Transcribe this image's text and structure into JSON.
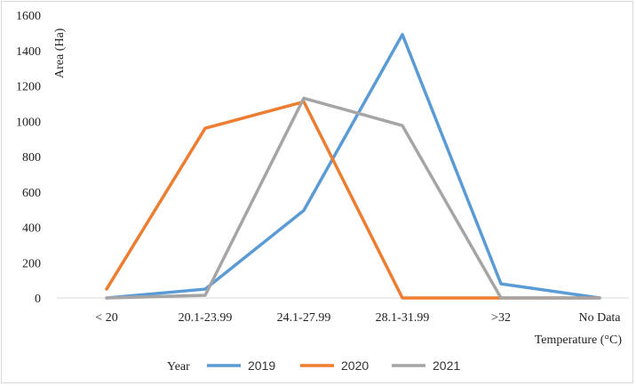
{
  "chart_data": {
    "type": "line",
    "title": "",
    "xlabel": "Temperature (°C)",
    "ylabel": "Area (Ha)",
    "categories": [
      "< 20",
      "20.1-23.99",
      "24.1-27.99",
      "28.1-31.99",
      ">32",
      "No Data"
    ],
    "ylim": [
      0,
      1600
    ],
    "yticks": [
      0,
      200,
      400,
      600,
      800,
      1000,
      1200,
      1400,
      1600
    ],
    "grid": false,
    "legend": {
      "title": "Year",
      "placement": "bottom"
    },
    "series": [
      {
        "name": "2019",
        "color": "#5b9bd5",
        "values": [
          0,
          50,
          495,
          1490,
          80,
          0
        ]
      },
      {
        "name": "2020",
        "color": "#ed7d31",
        "values": [
          50,
          960,
          1110,
          0,
          0,
          0
        ]
      },
      {
        "name": "2021",
        "color": "#a5a5a5",
        "values": [
          0,
          15,
          1130,
          975,
          0,
          0
        ]
      }
    ]
  }
}
